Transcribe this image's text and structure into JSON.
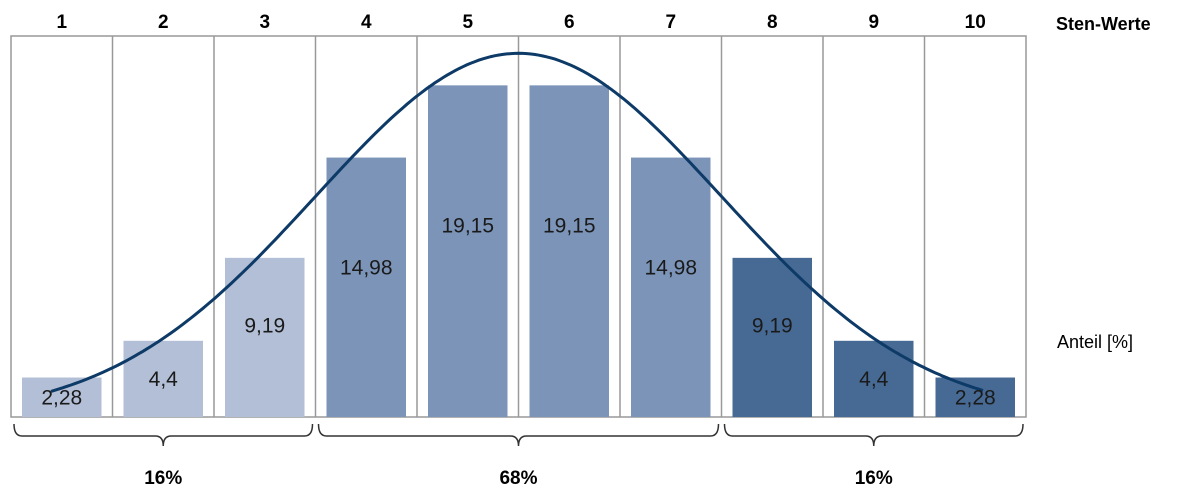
{
  "chart_data": {
    "type": "bar",
    "categories": [
      "1",
      "2",
      "3",
      "4",
      "5",
      "6",
      "7",
      "8",
      "9",
      "10"
    ],
    "values": [
      2.28,
      4.4,
      9.19,
      14.98,
      19.15,
      19.15,
      14.98,
      9.19,
      4.4,
      2.28
    ],
    "value_labels": [
      "2,28",
      "4,4",
      "9,19",
      "14,98",
      "19,15",
      "19,15",
      "14,98",
      "9,19",
      "4,4",
      "2,28"
    ],
    "bar_colors": [
      "#b3bfd6",
      "#b3bfd6",
      "#b3bfd6",
      "#7b94b8",
      "#7b94b8",
      "#7b94b8",
      "#7b94b8",
      "#476a94",
      "#476a94",
      "#476a94"
    ],
    "curve_color": "#0d3a66",
    "xlabel": "Sten-Werte",
    "ylabel": "Anteil [%]",
    "ylim": [
      0,
      22
    ],
    "groups": [
      {
        "from": "1",
        "to": "3",
        "label": "16%"
      },
      {
        "from": "4",
        "to": "7",
        "label": "68%"
      },
      {
        "from": "8",
        "to": "10",
        "label": "16%"
      }
    ]
  }
}
